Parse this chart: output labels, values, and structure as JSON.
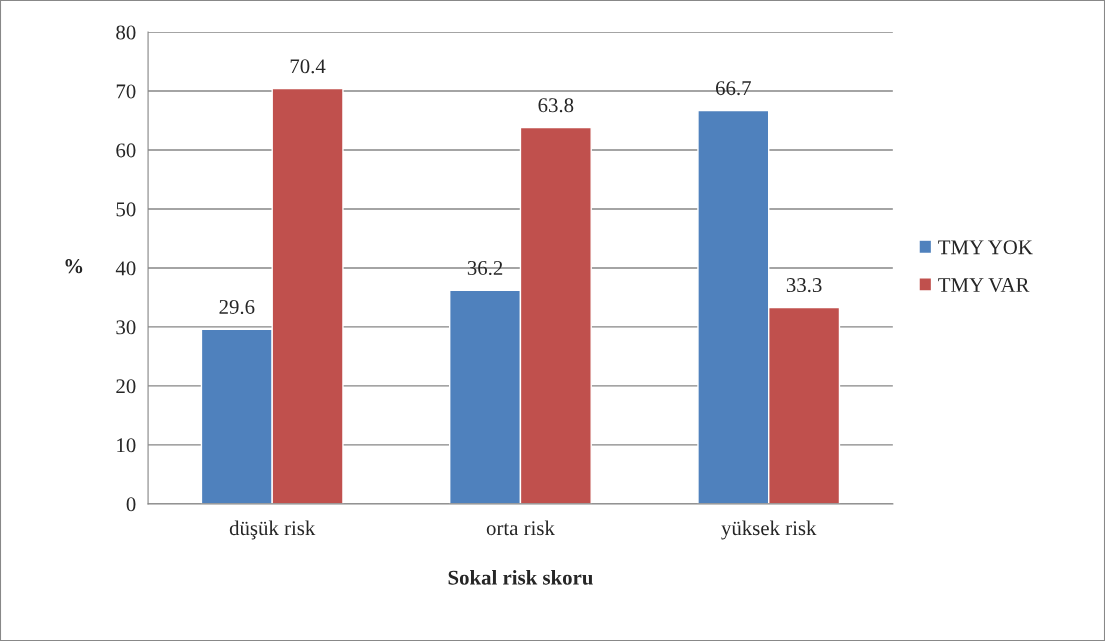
{
  "chart_data": {
    "type": "bar",
    "xlabel": "Sokal risk skoru",
    "ylabel": "%",
    "categories": [
      "düşük risk",
      "orta risk",
      "yüksek risk"
    ],
    "series": [
      {
        "name": "TMY YOK",
        "color": "#4f81bd",
        "values": [
          29.6,
          36.2,
          66.7
        ]
      },
      {
        "name": "TMY VAR",
        "color": "#c0504d",
        "values": [
          70.4,
          63.8,
          33.3
        ]
      }
    ],
    "ylim": [
      0,
      80
    ],
    "yticks": [
      0,
      10,
      20,
      30,
      40,
      50,
      60,
      70,
      80
    ],
    "grid": "y",
    "legend": "right",
    "data_labels": true
  }
}
